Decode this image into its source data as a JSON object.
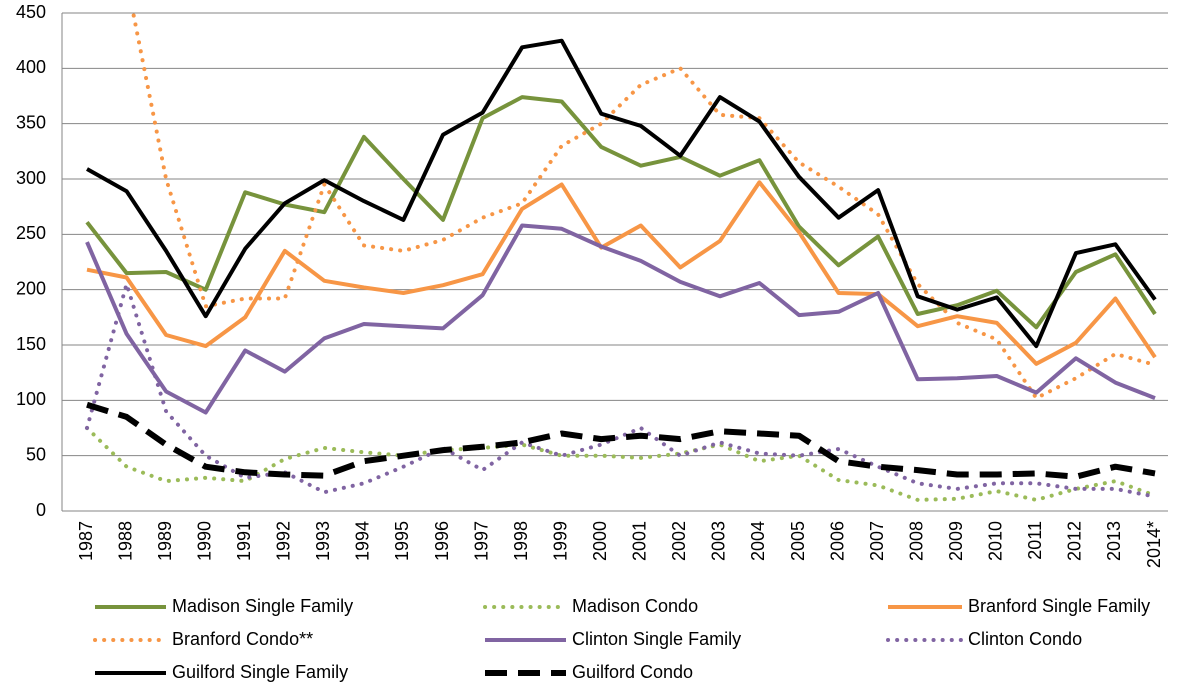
{
  "chart_data": {
    "type": "line",
    "categories": [
      "1987",
      "1988",
      "1989",
      "1990",
      "1991",
      "1992",
      "1993",
      "1994",
      "1995",
      "1996",
      "1997",
      "1998",
      "1999",
      "2000",
      "2001",
      "2002",
      "2003",
      "2004",
      "2005",
      "2006",
      "2007",
      "2008",
      "2009",
      "2010",
      "2011",
      "2012",
      "2013",
      "2014*"
    ],
    "series": [
      {
        "name": "Madison Single Family",
        "color": "#77933c",
        "dash": "solid",
        "values": [
          261,
          215,
          216,
          200,
          288,
          277,
          270,
          338,
          300,
          263,
          355,
          374,
          370,
          329,
          312,
          320,
          303,
          317,
          257,
          222,
          248,
          178,
          186,
          199,
          166,
          216,
          232,
          178
        ]
      },
      {
        "name": "Madison Condo",
        "color": "#9bbb59",
        "dash": "dotted",
        "values": [
          75,
          40,
          27,
          30,
          27,
          47,
          57,
          53,
          50,
          55,
          57,
          60,
          50,
          50,
          48,
          52,
          60,
          45,
          50,
          28,
          23,
          10,
          11,
          18,
          10,
          20,
          27,
          14
        ]
      },
      {
        "name": "Branford Single Family",
        "color": "#f79646",
        "dash": "solid",
        "values": [
          218,
          211,
          159,
          149,
          175,
          235,
          208,
          202,
          197,
          204,
          214,
          273,
          295,
          238,
          258,
          220,
          244,
          297,
          252,
          197,
          196,
          167,
          176,
          170,
          133,
          152,
          192,
          139
        ]
      },
      {
        "name": "Branford Condo**",
        "color": "#f79646",
        "dash": "dotted",
        "values": [
          null,
          480,
          300,
          185,
          192,
          192,
          295,
          240,
          235,
          245,
          265,
          278,
          330,
          350,
          385,
          400,
          358,
          355,
          315,
          293,
          268,
          205,
          170,
          155,
          102,
          120,
          142,
          132
        ]
      },
      {
        "name": "Clinton Single Family",
        "color": "#8064a2",
        "dash": "solid",
        "values": [
          243,
          160,
          108,
          89,
          145,
          126,
          156,
          169,
          167,
          165,
          195,
          258,
          255,
          239,
          226,
          207,
          194,
          206,
          177,
          180,
          197,
          119,
          120,
          122,
          107,
          138,
          116,
          102
        ]
      },
      {
        "name": "Clinton Condo",
        "color": "#8064a2",
        "dash": "dotted",
        "values": [
          75,
          205,
          90,
          50,
          30,
          35,
          17,
          25,
          40,
          57,
          37,
          62,
          50,
          60,
          75,
          50,
          62,
          52,
          50,
          56,
          40,
          25,
          20,
          25,
          25,
          20,
          20,
          13
        ]
      },
      {
        "name": "Guilford Single Family",
        "color": "#000000",
        "dash": "solid",
        "values": [
          309,
          289,
          235,
          176,
          237,
          278,
          299,
          280,
          263,
          340,
          360,
          419,
          425,
          359,
          348,
          321,
          374,
          352,
          302,
          265,
          290,
          194,
          182,
          193,
          149,
          233,
          241,
          191
        ]
      },
      {
        "name": "Guilford Condo",
        "color": "#000000",
        "dash": "dashed",
        "values": [
          96,
          85,
          60,
          40,
          35,
          33,
          32,
          45,
          50,
          55,
          58,
          62,
          70,
          65,
          68,
          65,
          72,
          70,
          68,
          45,
          40,
          37,
          33,
          33,
          34,
          31,
          40,
          34
        ]
      }
    ],
    "ylim": [
      0,
      450
    ],
    "yticks": [
      0,
      50,
      100,
      150,
      200,
      250,
      300,
      350,
      400,
      450
    ],
    "grid": true,
    "legend": "bottom"
  }
}
